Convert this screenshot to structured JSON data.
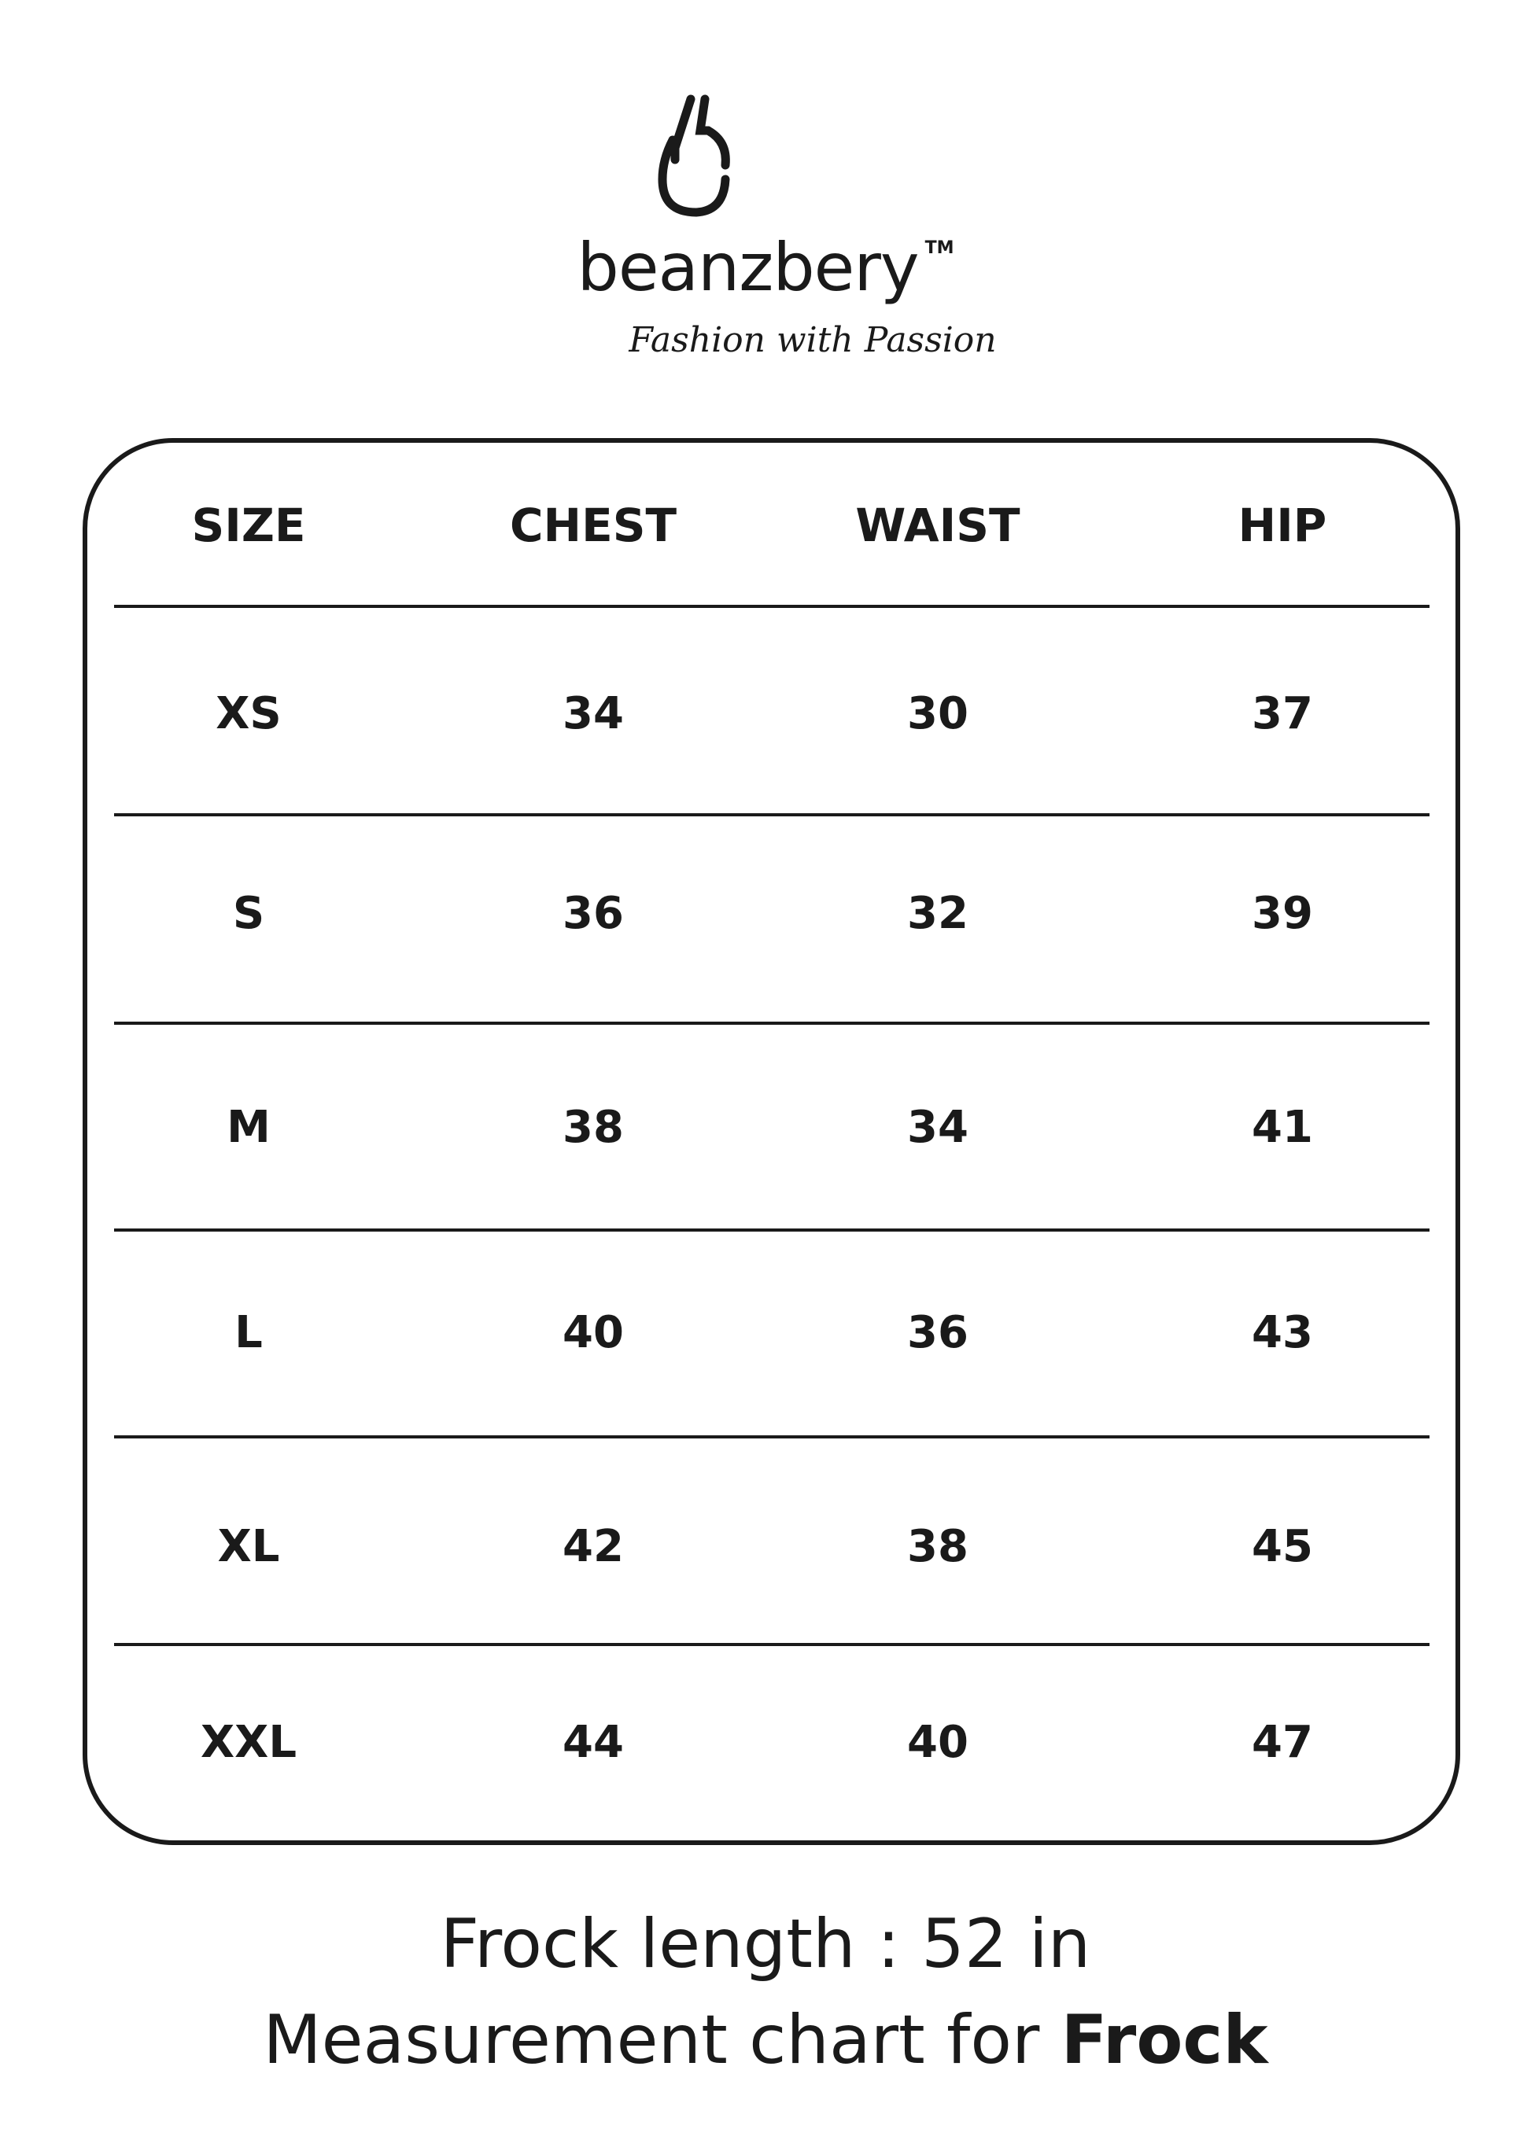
{
  "brand": {
    "name": "beanzbery",
    "trademark": "TM",
    "tagline": "Fashion with Passion"
  },
  "table": {
    "headers": [
      "SIZE",
      "CHEST",
      "WAIST",
      "HIP"
    ],
    "rows": [
      [
        "XS",
        "34",
        "30",
        "37"
      ],
      [
        "S",
        "36",
        "32",
        "39"
      ],
      [
        "M",
        "38",
        "34",
        "41"
      ],
      [
        "L",
        "40",
        "36",
        "43"
      ],
      [
        "XL",
        "42",
        "38",
        "45"
      ],
      [
        "XXL",
        "44",
        "40",
        "47"
      ]
    ]
  },
  "footer": {
    "length_line": "Frock length : 52 in",
    "chart_prefix": "Measurement chart for ",
    "chart_item": "Frock"
  }
}
